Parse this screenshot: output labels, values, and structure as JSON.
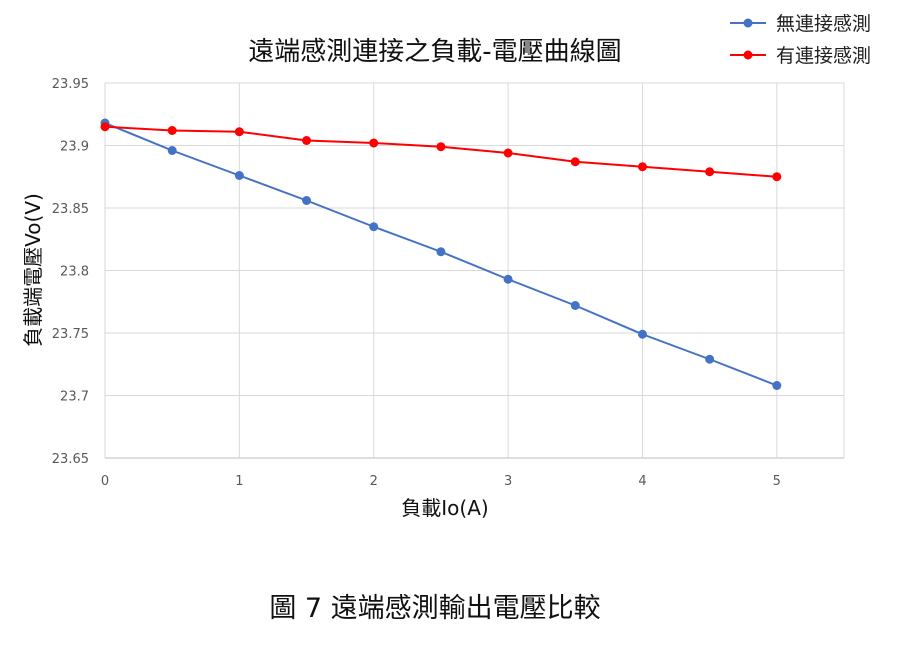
{
  "chart_data": {
    "type": "line",
    "title": "遠端感測連接之負載-電壓曲線圖",
    "xlabel": "負載Io(A)",
    "ylabel": "負載端電壓Vo(V)",
    "xlim": [
      0,
      5.5
    ],
    "ylim": [
      23.65,
      23.95
    ],
    "x_ticks": [
      "0",
      "1",
      "2",
      "3",
      "4",
      "5"
    ],
    "y_ticks": [
      "23.65",
      "23.7",
      "23.75",
      "23.8",
      "23.85",
      "23.9",
      "23.95"
    ],
    "grid": true,
    "legend_position": "top-right",
    "x": [
      0,
      0.5,
      1,
      1.5,
      2,
      2.5,
      3,
      3.5,
      4,
      4.5,
      5
    ],
    "series": [
      {
        "name": "無連接感測",
        "color": "#4472C4",
        "values": [
          23.918,
          23.896,
          23.876,
          23.856,
          23.835,
          23.815,
          23.793,
          23.772,
          23.749,
          23.729,
          23.708
        ]
      },
      {
        "name": "有連接感測",
        "color": "#FF0000",
        "values": [
          23.915,
          23.912,
          23.911,
          23.904,
          23.902,
          23.899,
          23.894,
          23.887,
          23.883,
          23.879,
          23.875
        ]
      }
    ]
  },
  "caption": "圖 7 遠端感測輸出電壓比較"
}
